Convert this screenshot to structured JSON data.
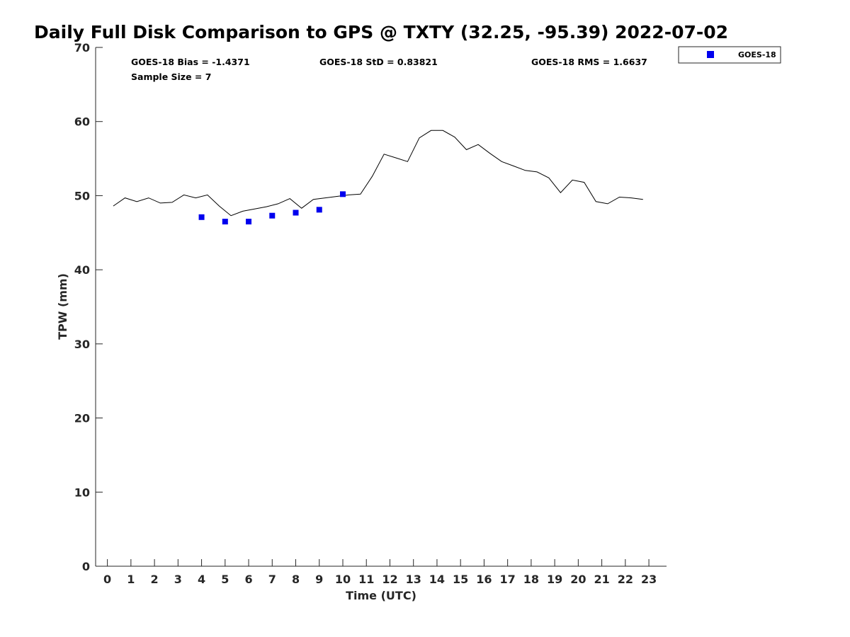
{
  "chart_data": {
    "type": "line",
    "title": "Daily Full Disk Comparison to GPS @ TXTY (32.25, -95.39) 2022-07-02",
    "xlabel": "Time (UTC)",
    "ylabel": "TPW (mm)",
    "xlim": [
      -0.5,
      23.75
    ],
    "ylim": [
      0,
      70
    ],
    "xticks": [
      0,
      1,
      2,
      3,
      4,
      5,
      6,
      7,
      8,
      9,
      10,
      11,
      12,
      13,
      14,
      15,
      16,
      17,
      18,
      19,
      20,
      21,
      22,
      23
    ],
    "yticks": [
      0,
      10,
      20,
      30,
      40,
      50,
      60,
      70
    ],
    "grid": false,
    "legend_position": "outside-top-right",
    "stats": {
      "bias": "GOES-18 Bias = -1.4371",
      "std": "GOES-18 StD = 0.83821",
      "rms": "GOES-18 RMS = 1.6637",
      "sample_size": "Sample Size = 7"
    },
    "series": [
      {
        "kind": "line",
        "color": "#000000",
        "x": [
          0.25,
          0.75,
          1.25,
          1.75,
          2.25,
          2.75,
          3.25,
          3.75,
          4.25,
          4.75,
          5.25,
          5.75,
          6.25,
          6.75,
          7.25,
          7.75,
          8.25,
          8.75,
          9.25,
          9.75,
          10.25,
          10.75,
          11.25,
          11.75,
          12.25,
          12.75,
          13.25,
          13.75,
          14.25,
          14.75,
          15.25,
          15.75,
          16.25,
          16.75,
          17.25,
          17.75,
          18.25,
          18.75,
          19.25,
          19.75,
          20.25,
          20.75,
          21.25,
          21.75,
          22.25,
          22.75
        ],
        "y": [
          48.6,
          49.7,
          49.2,
          49.7,
          49.0,
          49.1,
          50.1,
          49.7,
          50.1,
          48.6,
          47.3,
          47.9,
          48.2,
          48.5,
          48.9,
          49.6,
          48.3,
          49.5,
          49.7,
          49.9,
          50.1,
          50.2,
          52.6,
          55.6,
          55.1,
          54.6,
          57.8,
          58.8,
          58.8,
          57.9,
          56.2,
          56.9,
          55.7,
          54.6,
          54.0,
          53.4,
          53.2,
          52.4,
          50.4,
          52.1,
          51.8,
          49.2,
          48.9,
          49.8,
          49.7,
          49.5
        ]
      },
      {
        "kind": "marker",
        "name": "GOES-18",
        "color": "#0000ee",
        "marker": "square",
        "x": [
          4,
          5,
          6,
          7,
          8,
          9,
          10
        ],
        "y": [
          47.1,
          46.5,
          46.5,
          47.3,
          47.7,
          48.1,
          50.2
        ]
      }
    ]
  }
}
